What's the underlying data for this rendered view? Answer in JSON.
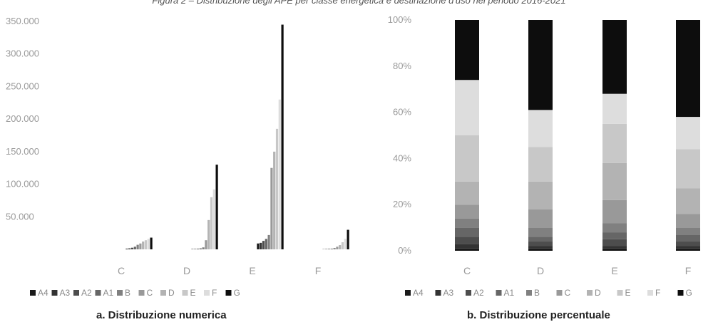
{
  "figure_title": "Figura 2 – Distribuzione degli APE per classe energetica e destinazione d'uso nel periodo 2016-2021",
  "caption_a": "a.    Distribuzione numerica",
  "caption_b": "b.    Distribuzione percentuale",
  "colors": {
    "A4": "#1a1a1a",
    "A3": "#333333",
    "A2": "#4d4d4d",
    "A1": "#666666",
    "B": "#808080",
    "C": "#999999",
    "D": "#b3b3b3",
    "E": "#c8c8c8",
    "F": "#dddddd",
    "G": "#0d0d0d"
  },
  "chart_data": [
    {
      "type": "bar",
      "categories": [
        "C",
        "D",
        "E",
        "F"
      ],
      "yticks": [
        "350.000",
        "300.000",
        "250.000",
        "200.000",
        "150.000",
        "100.000",
        "50.000"
      ],
      "ylim": [
        0,
        350000
      ],
      "legend": [
        "A4",
        "A3",
        "A2",
        "A1",
        "B",
        "C",
        "D",
        "E",
        "F",
        "G"
      ],
      "legend_position": "bottom",
      "series": [
        {
          "name": "A4",
          "values": [
            1000,
            500,
            9000,
            300
          ]
        },
        {
          "name": "A3",
          "values": [
            1500,
            600,
            10000,
            500
          ]
        },
        {
          "name": "A2",
          "values": [
            2500,
            900,
            13000,
            700
          ]
        },
        {
          "name": "A1",
          "values": [
            4000,
            1500,
            16000,
            1000
          ]
        },
        {
          "name": "B",
          "values": [
            7000,
            3000,
            22000,
            2000
          ]
        },
        {
          "name": "C",
          "values": [
            9000,
            14000,
            125000,
            4000
          ]
        },
        {
          "name": "D",
          "values": [
            12000,
            45000,
            150000,
            6500
          ]
        },
        {
          "name": "E",
          "values": [
            14000,
            80000,
            185000,
            11000
          ]
        },
        {
          "name": "F",
          "values": [
            16000,
            92000,
            230000,
            16000
          ]
        },
        {
          "name": "G",
          "values": [
            18000,
            130000,
            345000,
            30000
          ]
        }
      ]
    },
    {
      "type": "bar",
      "stacked": true,
      "categories": [
        "C",
        "D",
        "E",
        "F"
      ],
      "yticks": [
        "100%",
        "80%",
        "60%",
        "40%",
        "20%",
        "0%"
      ],
      "ylim": [
        0,
        100
      ],
      "legend": [
        "A4",
        "A3",
        "A2",
        "A1",
        "B",
        "C",
        "D",
        "E",
        "F",
        "G"
      ],
      "legend_position": "bottom",
      "series": [
        {
          "name": "A4",
          "values": [
            1,
            1,
            1,
            1
          ]
        },
        {
          "name": "A3",
          "values": [
            2,
            1,
            1,
            1
          ]
        },
        {
          "name": "A2",
          "values": [
            3,
            2,
            3,
            2
          ]
        },
        {
          "name": "A1",
          "values": [
            4,
            2,
            3,
            3
          ]
        },
        {
          "name": "B",
          "values": [
            4,
            4,
            4,
            3
          ]
        },
        {
          "name": "C",
          "values": [
            6,
            8,
            10,
            6
          ]
        },
        {
          "name": "D",
          "values": [
            10,
            12,
            16,
            11
          ]
        },
        {
          "name": "E",
          "values": [
            20,
            15,
            17,
            17
          ]
        },
        {
          "name": "F",
          "values": [
            24,
            16,
            13,
            14
          ]
        },
        {
          "name": "G",
          "values": [
            26,
            39,
            32,
            42
          ]
        }
      ]
    }
  ]
}
